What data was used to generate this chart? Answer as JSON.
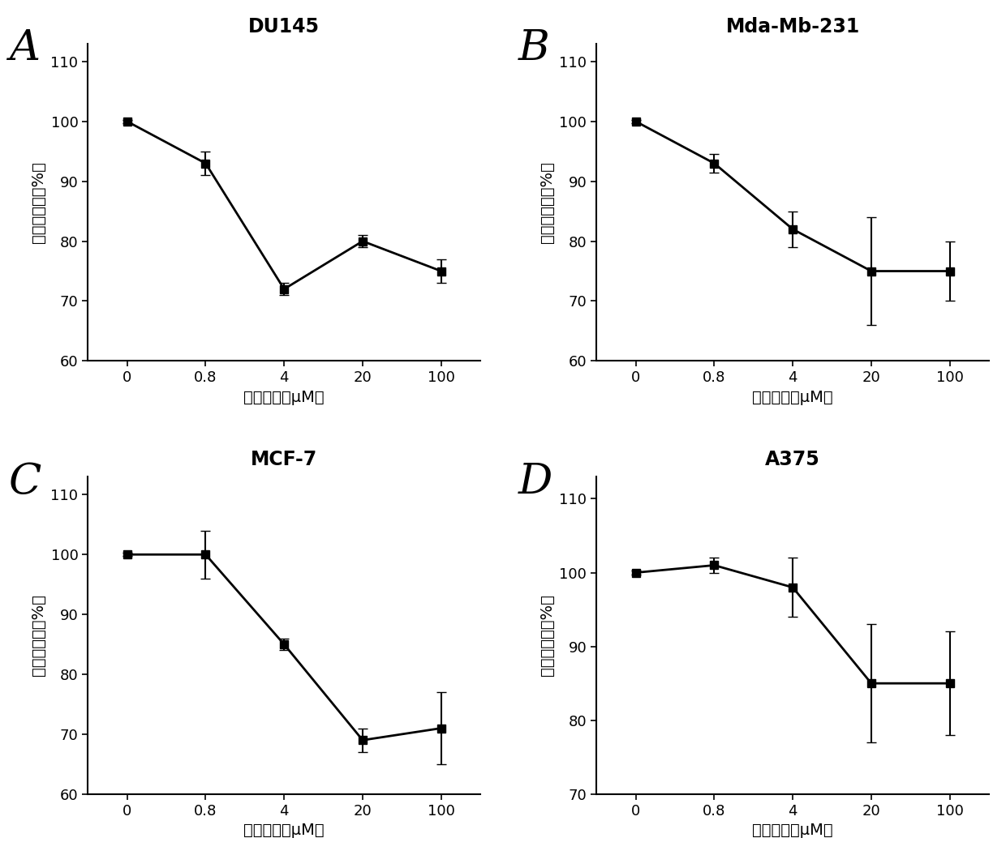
{
  "subplots": [
    {
      "label": "A",
      "title": "DU145",
      "x": [
        0,
        0.8,
        4,
        20,
        100
      ],
      "y": [
        100,
        93,
        72,
        80,
        75
      ],
      "yerr": [
        0.3,
        2.0,
        1.0,
        1.0,
        2.0
      ],
      "ylim": [
        60,
        113
      ],
      "yticks": [
        60,
        70,
        80,
        90,
        100,
        110
      ]
    },
    {
      "label": "B",
      "title": "Mda-Mb-231",
      "x": [
        0,
        0.8,
        4,
        20,
        100
      ],
      "y": [
        100,
        93,
        82,
        75,
        75
      ],
      "yerr": [
        0.3,
        1.5,
        3.0,
        9.0,
        5.0
      ],
      "ylim": [
        60,
        113
      ],
      "yticks": [
        60,
        70,
        80,
        90,
        100,
        110
      ]
    },
    {
      "label": "C",
      "title": "MCF-7",
      "x": [
        0,
        0.8,
        4,
        20,
        100
      ],
      "y": [
        100,
        100,
        85,
        69,
        71
      ],
      "yerr": [
        0.3,
        4.0,
        1.0,
        2.0,
        6.0
      ],
      "ylim": [
        60,
        113
      ],
      "yticks": [
        60,
        70,
        80,
        90,
        100,
        110
      ]
    },
    {
      "label": "D",
      "title": "A375",
      "x": [
        0,
        0.8,
        4,
        20,
        100
      ],
      "y": [
        100,
        101,
        98,
        85,
        85
      ],
      "yerr": [
        0.3,
        1.0,
        4.0,
        8.0,
        7.0
      ],
      "ylim": [
        70,
        113
      ],
      "yticks": [
        70,
        80,
        90,
        100,
        110
      ]
    }
  ],
  "xlabel": "肽的浓度（μM）",
  "ylabel": "细胞存活率（%）",
  "xtick_labels": [
    "0",
    "0.8",
    "4",
    "20",
    "100"
  ],
  "line_color": "#000000",
  "marker": "s",
  "markersize": 7,
  "linewidth": 2.0,
  "capsize": 4,
  "elinewidth": 1.5,
  "label_fontsize": 38,
  "title_fontsize": 17,
  "axis_label_fontsize": 14,
  "tick_fontsize": 13,
  "background_color": "#ffffff"
}
